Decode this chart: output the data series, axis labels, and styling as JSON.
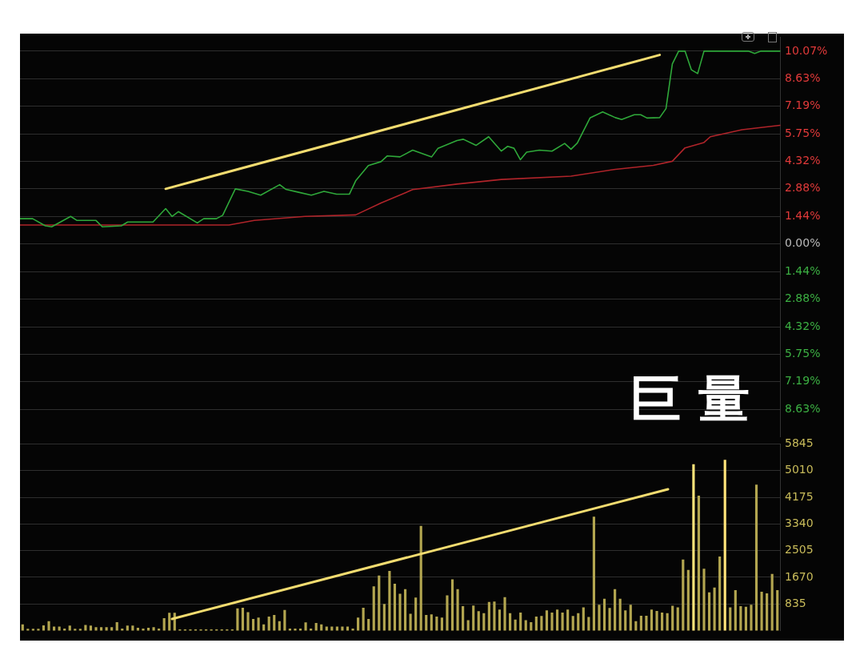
{
  "chart_data": [
    {
      "type": "line",
      "categories": [
        null,
        null,
        null,
        null,
        null,
        null,
        null,
        null,
        null,
        null,
        null,
        null,
        null,
        null,
        null,
        null,
        null,
        null,
        null,
        null,
        null,
        null,
        null,
        null,
        null,
        null,
        null,
        null,
        null,
        null,
        null,
        null,
        null,
        null,
        null,
        null,
        null,
        null,
        null,
        null,
        null,
        null,
        null,
        null,
        null,
        null,
        null,
        null,
        null,
        null,
        null,
        null,
        null,
        null,
        null,
        null,
        null,
        null,
        null,
        null,
        null,
        null,
        null,
        null,
        null,
        null,
        null,
        null,
        null,
        null,
        null,
        null,
        null,
        null,
        null,
        null,
        null,
        null,
        null,
        null,
        null,
        null,
        null,
        null,
        null,
        null,
        null,
        null,
        null,
        null,
        null,
        null,
        null,
        null,
        null,
        null,
        null,
        null,
        null,
        null,
        null,
        null,
        null,
        null,
        null,
        null,
        null,
        null,
        null,
        null,
        null,
        null,
        null,
        null,
        null,
        null,
        null,
        null,
        null,
        null,
        null
      ],
      "ylim": [
        -10.07,
        10.8
      ],
      "yticks": [
        {
          "value": 10.07,
          "label": "10.07%"
        },
        {
          "value": 8.63,
          "label": "8.63%"
        },
        {
          "value": 7.19,
          "label": "7.19%"
        },
        {
          "value": 5.75,
          "label": "5.75%"
        },
        {
          "value": 4.32,
          "label": "4.32%"
        },
        {
          "value": 2.88,
          "label": "2.88%"
        },
        {
          "value": 1.44,
          "label": "1.44%"
        },
        {
          "value": 0,
          "label": "0.00%"
        },
        {
          "value": -1.44,
          "label": "1.44%"
        },
        {
          "value": -2.88,
          "label": "2.88%"
        },
        {
          "value": -4.32,
          "label": "4.32%"
        },
        {
          "value": -5.75,
          "label": "5.75%"
        },
        {
          "value": -7.19,
          "label": "7.19%"
        },
        {
          "value": -8.63,
          "label": "8.63%"
        }
      ],
      "tick_labels": "y",
      "grid": "y",
      "marker": "none",
      "annotations": [
        "巨 量"
      ],
      "series": [
        {
          "color": "#2fa83a",
          "values": [
            1.32,
            null,
            1.32,
            null,
            0.95,
            0.9,
            null,
            null,
            1.44,
            1.23,
            null,
            null,
            1.23,
            0.9,
            null,
            null,
            0.95,
            1.15,
            null,
            null,
            null,
            1.15,
            null,
            1.85,
            1.44,
            1.69,
            null,
            null,
            1.1,
            1.32,
            null,
            1.32,
            1.5,
            null,
            2.88,
            null,
            2.75,
            null,
            2.55,
            null,
            null,
            3.1,
            2.85,
            null,
            2.7,
            null,
            2.55,
            null,
            2.75,
            null,
            2.6,
            null,
            2.6,
            3.3,
            null,
            4.1,
            null,
            4.3,
            4.6,
            null,
            4.55,
            null,
            4.9,
            null,
            null,
            4.55,
            5.0,
            null,
            null,
            5.4,
            5.47,
            null,
            5.15,
            null,
            5.6,
            null,
            4.85,
            5.1,
            5.0,
            4.4,
            4.8,
            null,
            4.9,
            null,
            4.85,
            null,
            5.25,
            4.95,
            5.27,
            null,
            6.58,
            null,
            6.9,
            null,
            6.6,
            6.5,
            null,
            6.75,
            6.75,
            6.58,
            null,
            6.6,
            7.07,
            9.4,
            10.07,
            10.07,
            9.1,
            8.9,
            10.07,
            null,
            null,
            null,
            null,
            null,
            null,
            10.07,
            9.95,
            10.07,
            null,
            null,
            10.07
          ]
        },
        {
          "color": "#b0242a",
          "values": [
            0.99,
            null,
            null,
            null,
            null,
            null,
            null,
            null,
            null,
            null,
            null,
            null,
            null,
            null,
            null,
            null,
            null,
            null,
            null,
            null,
            null,
            null,
            null,
            null,
            null,
            null,
            null,
            null,
            null,
            null,
            null,
            null,
            null,
            0.99,
            null,
            null,
            null,
            1.23,
            null,
            null,
            null,
            null,
            null,
            null,
            null,
            1.44,
            null,
            null,
            null,
            null,
            null,
            null,
            null,
            1.52,
            null,
            null,
            null,
            2.14,
            null,
            null,
            null,
            null,
            2.84,
            null,
            null,
            null,
            null,
            null,
            null,
            3.13,
            null,
            null,
            null,
            null,
            null,
            null,
            3.37,
            null,
            null,
            null,
            null,
            null,
            null,
            null,
            null,
            null,
            null,
            3.54,
            null,
            null,
            null,
            null,
            null,
            null,
            3.9,
            null,
            null,
            null,
            null,
            null,
            4.11,
            null,
            null,
            4.32,
            null,
            5.02,
            null,
            null,
            5.3,
            5.6,
            null,
            null,
            null,
            null,
            5.97,
            null,
            null,
            null,
            null,
            null,
            6.2
          ]
        },
        {
          "color": "#f3dc70",
          "values": [
            null,
            null,
            null,
            null,
            null,
            null,
            null,
            null,
            null,
            null,
            null,
            null,
            null,
            null,
            null,
            null,
            null,
            null,
            null,
            null,
            null,
            null,
            null,
            2.88,
            null,
            null,
            null,
            null,
            null,
            null,
            null,
            null,
            null,
            null,
            null,
            null,
            null,
            null,
            null,
            null,
            null,
            null,
            null,
            null,
            null,
            null,
            null,
            null,
            null,
            null,
            null,
            null,
            null,
            null,
            null,
            null,
            null,
            null,
            null,
            null,
            null,
            null,
            null,
            null,
            null,
            null,
            null,
            null,
            null,
            null,
            null,
            null,
            null,
            null,
            null,
            null,
            null,
            null,
            null,
            null,
            null,
            null,
            null,
            null,
            null,
            null,
            null,
            null,
            null,
            null,
            null,
            null,
            null,
            null,
            null,
            null,
            null,
            null,
            null,
            null,
            null,
            9.87,
            null,
            null,
            null,
            null,
            null,
            null,
            null,
            null,
            null,
            null,
            null,
            null,
            null,
            null,
            null,
            null,
            null,
            null,
            null
          ]
        }
      ]
    },
    {
      "type": "bar",
      "categories": [
        null,
        null,
        null,
        null,
        null,
        null,
        null,
        null,
        null,
        null,
        null,
        null,
        null,
        null,
        null,
        null,
        null,
        null,
        null,
        null,
        null,
        null,
        null,
        null,
        null,
        null,
        null,
        null,
        null,
        null,
        null,
        null,
        null,
        null,
        null,
        null,
        null,
        null,
        null,
        null,
        null,
        null,
        null,
        null,
        null,
        null,
        null,
        null,
        null,
        null,
        null,
        null,
        null,
        null,
        null,
        null,
        null,
        null,
        null,
        null,
        null,
        null,
        null,
        null,
        null,
        null,
        null,
        null,
        null,
        null,
        null,
        null,
        null,
        null,
        null,
        null,
        null,
        null,
        null,
        null,
        null,
        null,
        null,
        null,
        null,
        null,
        null,
        null,
        null,
        null,
        null,
        null,
        null,
        null,
        null,
        null,
        null,
        null,
        null,
        null,
        null,
        null,
        null,
        null,
        null,
        null,
        null,
        null,
        null,
        null,
        null,
        null,
        null,
        null,
        null,
        null,
        null,
        null,
        null,
        null,
        null,
        null,
        null,
        null,
        null,
        null,
        null,
        null,
        null,
        null,
        null,
        null,
        null,
        null,
        null,
        null,
        null,
        null,
        null,
        null,
        null,
        null,
        null,
        null,
        null
      ],
      "ylim": [
        0,
        5845
      ],
      "yticks": [
        835,
        1670,
        2505,
        3340,
        4175,
        5010,
        5845
      ],
      "tick_labels": "y",
      "grid": "y",
      "series": [
        {
          "color": "#b3a650",
          "values": [
            190,
            50,
            50,
            50,
            160,
            290,
            120,
            120,
            60,
            150,
            50,
            50,
            170,
            150,
            100,
            100,
            100,
            100,
            260,
            60,
            150,
            150,
            80,
            60,
            80,
            100,
            60,
            380,
            550,
            550,
            30,
            30,
            30,
            30,
            30,
            30,
            30,
            30,
            30,
            30,
            30,
            690,
            710,
            570,
            360,
            400,
            190,
            430,
            480,
            290,
            640,
            60,
            60,
            60,
            250,
            60,
            230,
            190,
            120,
            120,
            120,
            120,
            120,
            60,
            400,
            710,
            360,
            1380,
            1720,
            830,
            1860,
            1460,
            1150,
            1290,
            520,
            1030,
            3270,
            480,
            500,
            430,
            400,
            1100,
            1600,
            1290,
            760,
            320,
            780,
            600,
            540,
            890,
            900,
            650,
            1040,
            540,
            340,
            560,
            320,
            260,
            430,
            450,
            630,
            560,
            650,
            560,
            650,
            450,
            540,
            720,
            420,
            3560,
            800,
            990,
            700,
            1290,
            990,
            630,
            800,
            290,
            460,
            460,
            650,
            610,
            560,
            540,
            770,
            720,
            2220,
            1890,
            5200,
            4220,
            1930,
            1190,
            1340,
            2310,
            5340,
            720,
            1260,
            760,
            740,
            800,
            4560,
            1210,
            1160,
            1770,
            1260
          ],
          "colors": [
            null,
            null,
            null,
            null,
            null,
            null,
            null,
            null,
            null,
            null,
            null,
            null,
            null,
            null,
            null,
            null,
            null,
            null,
            null,
            null,
            null,
            null,
            null,
            null,
            null,
            null,
            null,
            null,
            null,
            null,
            null,
            null,
            null,
            null,
            null,
            null,
            null,
            null,
            null,
            null,
            null,
            null,
            null,
            null,
            null,
            null,
            null,
            null,
            null,
            null,
            null,
            null,
            null,
            null,
            null,
            null,
            null,
            null,
            null,
            null,
            null,
            null,
            null,
            null,
            null,
            null,
            null,
            null,
            null,
            null,
            null,
            null,
            null,
            null,
            null,
            null,
            null,
            null,
            null,
            null,
            null,
            null,
            null,
            null,
            null,
            null,
            null,
            null,
            null,
            null,
            null,
            null,
            null,
            null,
            null,
            null,
            null,
            null,
            null,
            null,
            null,
            null,
            null,
            null,
            null,
            null,
            null,
            null,
            null,
            null,
            null,
            null,
            null,
            null,
            null,
            null,
            null,
            null,
            null,
            null,
            null,
            null,
            null,
            null,
            null,
            null,
            null,
            null,
            "#ffe47a",
            null,
            null,
            null,
            null,
            null,
            "#ffe47a",
            null,
            null,
            null,
            null,
            null,
            null,
            null,
            null,
            null,
            null
          ]
        }
      ]
    }
  ]
}
